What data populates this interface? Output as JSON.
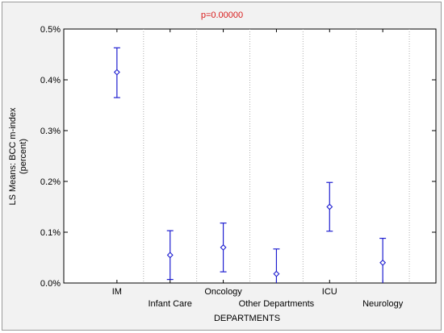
{
  "chart_data": {
    "type": "scatter",
    "title": "p=0.00000",
    "xlabel": "DEPARTMENTS",
    "ylabel_lines": [
      "LS Means: BCC m-index",
      "(percent)"
    ],
    "categories": [
      "IM",
      "Infant Care",
      "Oncology",
      "Other Departments",
      "ICU",
      "Neurology"
    ],
    "category_label_row": [
      0,
      1,
      0,
      1,
      0,
      1
    ],
    "means": [
      0.415,
      0.055,
      0.07,
      0.018,
      0.15,
      0.04
    ],
    "lower": [
      0.365,
      0.007,
      0.022,
      -0.03,
      0.102,
      -0.008
    ],
    "upper": [
      0.463,
      0.103,
      0.118,
      0.067,
      0.198,
      0.088
    ],
    "ylim": [
      0,
      0.5
    ],
    "yticks": [
      0,
      0.1,
      0.2,
      0.3,
      0.4,
      0.5
    ],
    "ytick_labels": [
      "0.0%",
      "0.1%",
      "0.2%",
      "0.3%",
      "0.4%",
      "0.5%"
    ],
    "grid": "vertical-dotted",
    "marker_color": "#1f1fd0",
    "title_color": "#d81b1b"
  }
}
